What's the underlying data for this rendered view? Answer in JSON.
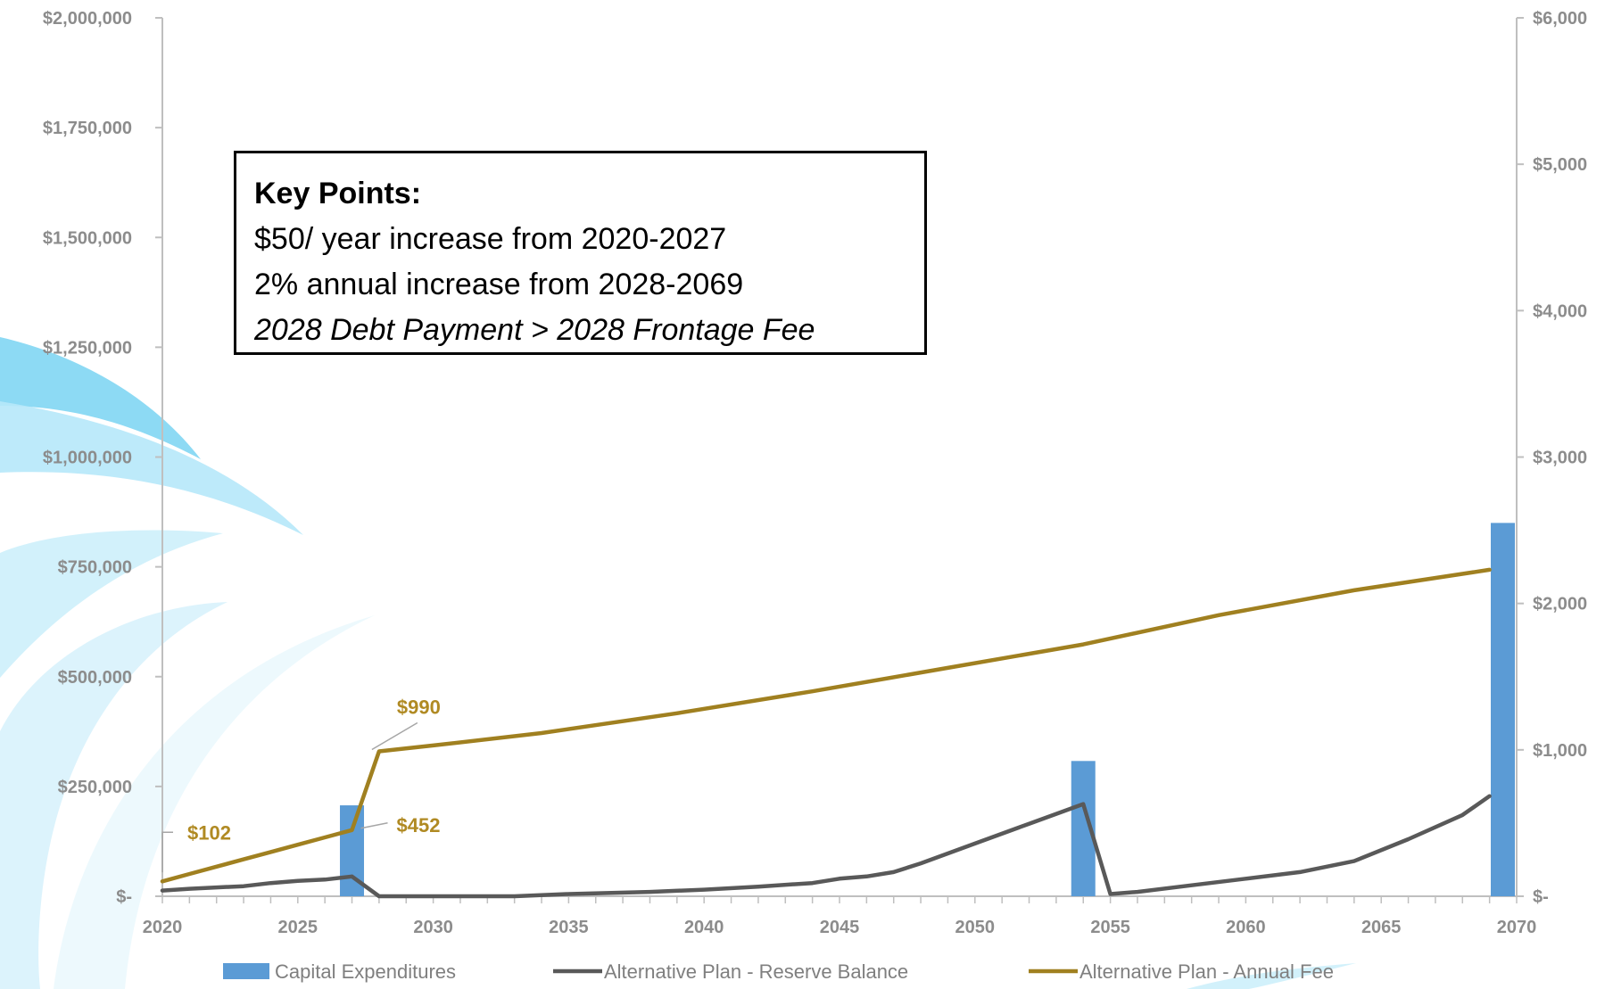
{
  "chart_data": {
    "type": "bar+line",
    "title": "",
    "xlabel": "",
    "x_ticks": [
      "2020",
      "2025",
      "2030",
      "2035",
      "2040",
      "2045",
      "2050",
      "2055",
      "2060",
      "2065",
      "2070"
    ],
    "xlim": [
      2020,
      2070
    ],
    "y_left_ticks": [
      "$2,000,000",
      "$1,750,000",
      "$1,500,000",
      "$1,250,000",
      "$1,000,000",
      "$750,000",
      "$500,000",
      "$250,000",
      "$-"
    ],
    "ylim_left": [
      0,
      2000000
    ],
    "y_right_ticks": [
      "$6,000",
      "$5,000",
      "$4,000",
      "$3,000",
      "$2,000",
      "$1,000",
      "$-"
    ],
    "ylim_right": [
      0,
      6000
    ],
    "grid": false,
    "legend_position": "bottom",
    "series": [
      {
        "name": "Capital Expenditures",
        "type": "bar",
        "axis": "left",
        "color": "#5b9bd5",
        "points": [
          [
            2027,
            207000
          ],
          [
            2054,
            308000
          ],
          [
            2070,
            850000
          ]
        ]
      },
      {
        "name": "Alternative Plan - Reserve Balance",
        "type": "line",
        "axis": "left",
        "color": "#595959",
        "points": [
          [
            2020,
            13000
          ],
          [
            2021,
            17000
          ],
          [
            2022,
            20000
          ],
          [
            2023,
            23000
          ],
          [
            2024,
            30000
          ],
          [
            2025,
            35000
          ],
          [
            2026,
            38000
          ],
          [
            2027,
            45000
          ],
          [
            2028,
            0
          ],
          [
            2030,
            0
          ],
          [
            2033,
            0
          ],
          [
            2035,
            5000
          ],
          [
            2038,
            10000
          ],
          [
            2040,
            15000
          ],
          [
            2042,
            22000
          ],
          [
            2044,
            30000
          ],
          [
            2045,
            40000
          ],
          [
            2046,
            45000
          ],
          [
            2047,
            55000
          ],
          [
            2048,
            75000
          ],
          [
            2050,
            120000
          ],
          [
            2052,
            165000
          ],
          [
            2054,
            210000
          ],
          [
            2055,
            5000
          ],
          [
            2056,
            10000
          ],
          [
            2058,
            25000
          ],
          [
            2060,
            40000
          ],
          [
            2062,
            55000
          ],
          [
            2064,
            80000
          ],
          [
            2066,
            130000
          ],
          [
            2068,
            185000
          ],
          [
            2069,
            228000
          ]
        ]
      },
      {
        "name": "Alternative Plan - Annual Fee",
        "type": "line",
        "axis": "right",
        "color": "#a08020",
        "points": [
          [
            2020,
            102
          ],
          [
            2021,
            152
          ],
          [
            2022,
            202
          ],
          [
            2023,
            252
          ],
          [
            2024,
            302
          ],
          [
            2025,
            352
          ],
          [
            2026,
            402
          ],
          [
            2027,
            452
          ],
          [
            2028,
            990
          ],
          [
            2030,
            1030
          ],
          [
            2034,
            1115
          ],
          [
            2039,
            1250
          ],
          [
            2044,
            1400
          ],
          [
            2049,
            1560
          ],
          [
            2054,
            1720
          ],
          [
            2059,
            1920
          ],
          [
            2064,
            2090
          ],
          [
            2069,
            2230
          ]
        ]
      }
    ],
    "annotations": [
      {
        "text": "$102",
        "x": 2020,
        "value": 102,
        "axis": "right"
      },
      {
        "text": "$452",
        "x": 2027,
        "value": 452,
        "axis": "right"
      },
      {
        "text": "$990",
        "x": 2028,
        "value": 990,
        "axis": "right"
      }
    ],
    "key_points": {
      "title": "Key Points:",
      "lines": [
        "$50/ year increase from 2020-2027",
        "2% annual increase from 2028-2069",
        "2028 Debt Payment > 2028 Frontage Fee"
      ]
    }
  }
}
